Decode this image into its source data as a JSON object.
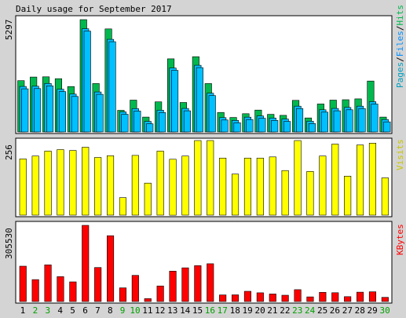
{
  "title": "Daily usage for September 2017",
  "colors": {
    "background": "#d4d4d4",
    "panel": "#ffffff",
    "hits": "#00b84e",
    "files": "#00c0ff",
    "pages": "#00a0c0",
    "visits": "#ffff00",
    "kbytes": "#ff0000",
    "weekend": "#00a000"
  },
  "legend": {
    "hits_panel": [
      "Pages",
      "/",
      "Files",
      "/",
      "Hits"
    ],
    "visits_panel": "Visits",
    "kbytes_panel": "KBytes"
  },
  "chart_data": [
    {
      "type": "bar",
      "title": "Daily usage for September 2017",
      "panel": "hits",
      "categories": [
        "1",
        "2",
        "3",
        "4",
        "5",
        "6",
        "7",
        "8",
        "9",
        "10",
        "11",
        "12",
        "13",
        "14",
        "15",
        "16",
        "17",
        "18",
        "19",
        "20",
        "21",
        "22",
        "23",
        "24",
        "25",
        "26",
        "27",
        "28",
        "29",
        "30"
      ],
      "weekend_days": [
        "2",
        "3",
        "9",
        "10",
        "16",
        "17",
        "23",
        "24",
        "30"
      ],
      "ymax_label": "5297",
      "ylim": [
        0,
        5297
      ],
      "series": [
        {
          "name": "Hits",
          "values": [
            2420,
            2590,
            2600,
            2510,
            2140,
            5297,
            2280,
            4860,
            1020,
            1500,
            700,
            1420,
            3450,
            1390,
            3550,
            2280,
            920,
            680,
            860,
            1030,
            830,
            780,
            1490,
            660,
            1320,
            1500,
            1520,
            1560,
            2400,
            700
          ]
        },
        {
          "name": "Files",
          "values": [
            2220,
            2230,
            2360,
            2090,
            1860,
            4940,
            1960,
            4440,
            1020,
            1170,
            570,
            1100,
            3090,
            1180,
            3220,
            1900,
            750,
            620,
            770,
            830,
            730,
            680,
            1290,
            580,
            1120,
            1180,
            1230,
            1290,
            1500,
            660
          ]
        },
        {
          "name": "Pages",
          "values": [
            2220,
            2230,
            2360,
            2090,
            1860,
            4940,
            1960,
            4440,
            1020,
            1170,
            570,
            1100,
            3090,
            1180,
            3220,
            1900,
            750,
            620,
            770,
            830,
            730,
            680,
            1290,
            580,
            1120,
            1180,
            1230,
            1290,
            1500,
            660
          ]
        }
      ]
    },
    {
      "type": "bar",
      "panel": "visits",
      "categories": [
        "1",
        "2",
        "3",
        "4",
        "5",
        "6",
        "7",
        "8",
        "9",
        "10",
        "11",
        "12",
        "13",
        "14",
        "15",
        "16",
        "17",
        "18",
        "19",
        "20",
        "21",
        "22",
        "23",
        "24",
        "25",
        "26",
        "27",
        "28",
        "29",
        "30"
      ],
      "ymax_label": "256",
      "ylim": [
        0,
        256
      ],
      "series": [
        {
          "name": "Visits",
          "values": [
            193,
            203,
            220,
            225,
            222,
            233,
            198,
            204,
            60,
            205,
            110,
            220,
            192,
            203,
            256,
            256,
            196,
            141,
            196,
            196,
            200,
            153,
            256,
            150,
            203,
            244,
            134,
            241,
            247,
            128
          ]
        }
      ]
    },
    {
      "type": "bar",
      "panel": "kbytes",
      "categories": [
        "1",
        "2",
        "3",
        "4",
        "5",
        "6",
        "7",
        "8",
        "9",
        "10",
        "11",
        "12",
        "13",
        "14",
        "15",
        "16",
        "17",
        "18",
        "19",
        "20",
        "21",
        "22",
        "23",
        "24",
        "25",
        "26",
        "27",
        "28",
        "29",
        "30"
      ],
      "ymax_label": "305530",
      "ylim": [
        0,
        305530
      ],
      "series": [
        {
          "name": "KBytes",
          "values": [
            141700,
            87800,
            147000,
            100000,
            78700,
            305530,
            136300,
            263800,
            54900,
            105000,
            11700,
            62400,
            121900,
            135000,
            144000,
            151600,
            26500,
            26800,
            41100,
            35000,
            30100,
            25100,
            47600,
            18600,
            36800,
            35400,
            19500,
            37600,
            39100,
            16600
          ]
        }
      ]
    }
  ]
}
